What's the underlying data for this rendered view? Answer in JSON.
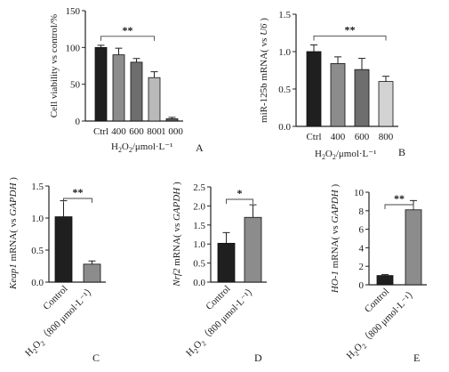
{
  "chart_data": [
    {
      "panel_label": "A",
      "type": "bar",
      "ylabel": "Cell viability vs control/%",
      "xlabel": "H2O2/μmol·L⁻¹",
      "categories": [
        "Ctrl",
        "400",
        "600",
        "800",
        "1 000"
      ],
      "values": [
        100,
        90,
        80,
        59,
        3
      ],
      "errors": [
        3,
        9,
        5,
        8,
        2
      ],
      "colors": [
        "#1f1f1f",
        "#8c8c8c",
        "#6e6e6e",
        "#b9b9b9",
        "#5a5a5a"
      ],
      "ylim": [
        0,
        150
      ],
      "yticks": [
        0,
        50,
        100,
        150
      ],
      "significance": {
        "from": 0,
        "to": 3,
        "label": "**"
      }
    },
    {
      "panel_label": "B",
      "type": "bar",
      "ylabel_parts": [
        "miR-125b mRNA( vs ",
        "U6",
        " )"
      ],
      "xlabel": "H2O2/μmol·L⁻¹",
      "categories": [
        "Ctrl",
        "400",
        "600",
        "800"
      ],
      "values": [
        1.0,
        0.84,
        0.76,
        0.6
      ],
      "errors": [
        0.09,
        0.09,
        0.15,
        0.07
      ],
      "colors": [
        "#1f1f1f",
        "#8c8c8c",
        "#6e6e6e",
        "#d2d2d2"
      ],
      "ylim": [
        0,
        1.5
      ],
      "yticks": [
        "0.0",
        "0.5",
        "1.0",
        "1.5"
      ],
      "significance": {
        "from": 0,
        "to": 3,
        "label": "**"
      }
    },
    {
      "panel_label": "C",
      "type": "bar",
      "ylabel_parts": [
        "Keap1",
        " mRNA( vs ",
        "GAPDH",
        " )"
      ],
      "categories": [
        "Control",
        "H2O2（800 μmol·L⁻¹）"
      ],
      "values": [
        1.02,
        0.28
      ],
      "errors": [
        0.25,
        0.05
      ],
      "colors": [
        "#1f1f1f",
        "#8c8c8c"
      ],
      "ylim": [
        0,
        1.5
      ],
      "yticks": [
        "0.0",
        "0.5",
        "1.0",
        "1.5"
      ],
      "significance": {
        "from": 0,
        "to": 1,
        "label": "**"
      }
    },
    {
      "panel_label": "D",
      "type": "bar",
      "ylabel_parts": [
        "Nrf2",
        " mRNA( vs ",
        "GAPDH",
        " )"
      ],
      "categories": [
        "Control",
        "H2O2（800 μmol·L⁻¹）"
      ],
      "values": [
        1.02,
        1.7
      ],
      "errors": [
        0.28,
        0.33
      ],
      "colors": [
        "#1f1f1f",
        "#8c8c8c"
      ],
      "ylim": [
        0,
        2.5
      ],
      "yticks": [
        "0.0",
        "0.5",
        "1.0",
        "1.5",
        "2.0",
        "2.5"
      ],
      "significance": {
        "from": 0,
        "to": 1,
        "label": "*"
      }
    },
    {
      "panel_label": "E",
      "type": "bar",
      "ylabel_parts": [
        "HO-1",
        " mRNA( vs ",
        "GAPDH",
        " )"
      ],
      "categories": [
        "Control",
        "H2O2（800 μmol·L⁻¹）"
      ],
      "values": [
        1.0,
        8.1
      ],
      "errors": [
        0.1,
        1.0
      ],
      "colors": [
        "#1f1f1f",
        "#8c8c8c"
      ],
      "ylim": [
        0,
        10
      ],
      "yticks": [
        "0",
        "2",
        "4",
        "6",
        "8",
        "10"
      ],
      "significance": {
        "from": 0,
        "to": 1,
        "label": "**"
      }
    }
  ]
}
